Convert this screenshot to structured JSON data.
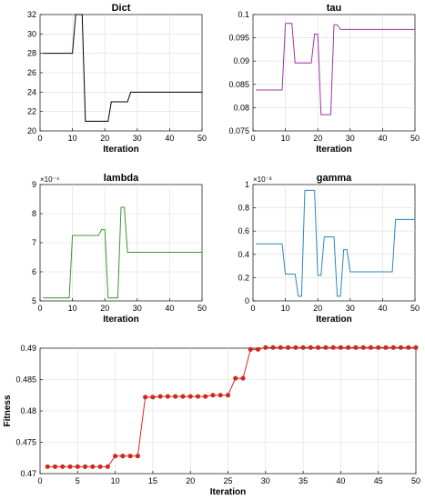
{
  "chart_data": [
    {
      "id": "dict",
      "type": "line",
      "title": "Dict",
      "xlabel": "Iteration",
      "ylabel": "",
      "xlim": [
        0,
        50
      ],
      "ylim": [
        20,
        32
      ],
      "xticks": [
        0,
        10,
        20,
        30,
        40,
        50
      ],
      "yticks": [
        20,
        22,
        24,
        26,
        28,
        30,
        32
      ],
      "ytick_labels": [
        "20",
        "22",
        "24",
        "26",
        "28",
        "30",
        "32"
      ],
      "exponent_label": "",
      "grid": true,
      "color": "#000000",
      "markers": false,
      "series": [
        {
          "x": [
            1,
            2,
            3,
            4,
            5,
            6,
            7,
            8,
            9,
            10,
            11,
            12,
            13,
            14,
            15,
            16,
            17,
            18,
            19,
            20,
            21,
            22,
            23,
            24,
            25,
            26,
            27,
            28,
            29,
            30,
            31,
            32,
            33,
            34,
            35,
            36,
            37,
            38,
            39,
            40,
            41,
            42,
            43,
            44,
            45,
            46,
            47,
            48,
            49,
            50
          ],
          "y": [
            28,
            28,
            28,
            28,
            28,
            28,
            28,
            28,
            28,
            28,
            32,
            32,
            32,
            21,
            21,
            21,
            21,
            21,
            21,
            21,
            21,
            23,
            23,
            23,
            23,
            23,
            23,
            24,
            24,
            24,
            24,
            24,
            24,
            24,
            24,
            24,
            24,
            24,
            24,
            24,
            24,
            24,
            24,
            24,
            24,
            24,
            24,
            24,
            24,
            24
          ]
        }
      ]
    },
    {
      "id": "tau",
      "type": "line",
      "title": "tau",
      "xlabel": "Iteration",
      "ylabel": "",
      "xlim": [
        0,
        50
      ],
      "ylim": [
        0.075,
        0.1
      ],
      "xticks": [
        0,
        10,
        20,
        30,
        40,
        50
      ],
      "yticks": [
        0.075,
        0.08,
        0.085,
        0.09,
        0.095,
        0.1
      ],
      "ytick_labels": [
        "0.075",
        "0.08",
        "0.085",
        "0.09",
        "0.095",
        "0.1"
      ],
      "exponent_label": "",
      "grid": true,
      "color": "#a035a8",
      "markers": false,
      "series": [
        {
          "x": [
            1,
            2,
            3,
            4,
            5,
            6,
            7,
            8,
            9,
            10,
            11,
            12,
            13,
            14,
            15,
            16,
            17,
            18,
            19,
            20,
            21,
            22,
            23,
            24,
            25,
            26,
            27,
            28,
            29,
            30,
            31,
            32,
            33,
            34,
            35,
            36,
            37,
            38,
            39,
            40,
            41,
            42,
            43,
            44,
            45,
            46,
            47,
            48,
            49,
            50
          ],
          "y": [
            0.0838,
            0.0838,
            0.0838,
            0.0838,
            0.0838,
            0.0838,
            0.0838,
            0.0838,
            0.0838,
            0.0981,
            0.0981,
            0.0981,
            0.0896,
            0.0896,
            0.0896,
            0.0896,
            0.0896,
            0.0896,
            0.0958,
            0.0958,
            0.0785,
            0.0785,
            0.0785,
            0.0785,
            0.0978,
            0.0978,
            0.0968,
            0.0968,
            0.0968,
            0.0968,
            0.0968,
            0.0968,
            0.0968,
            0.0968,
            0.0968,
            0.0968,
            0.0968,
            0.0968,
            0.0968,
            0.0968,
            0.0968,
            0.0968,
            0.0968,
            0.0968,
            0.0968,
            0.0968,
            0.0968,
            0.0968,
            0.0968,
            0.0968
          ]
        }
      ]
    },
    {
      "id": "lambda",
      "type": "line",
      "title": "lambda",
      "xlabel": "Iteration",
      "ylabel": "",
      "xlim": [
        0,
        50
      ],
      "ylim": [
        5,
        9
      ],
      "xticks": [
        0,
        10,
        20,
        30,
        40,
        50
      ],
      "yticks": [
        5,
        6,
        7,
        8,
        9
      ],
      "ytick_labels": [
        "5",
        "6",
        "7",
        "8",
        "9"
      ],
      "exponent_label": "×10⁻⁴",
      "grid": true,
      "color": "#3a9a2e",
      "markers": false,
      "series": [
        {
          "x": [
            1,
            2,
            3,
            4,
            5,
            6,
            7,
            8,
            9,
            10,
            11,
            12,
            13,
            14,
            15,
            16,
            17,
            18,
            19,
            20,
            21,
            22,
            23,
            24,
            25,
            26,
            27,
            28,
            29,
            30,
            31,
            32,
            33,
            34,
            35,
            36,
            37,
            38,
            39,
            40,
            41,
            42,
            43,
            44,
            45,
            46,
            47,
            48,
            49,
            50
          ],
          "y": [
            5.1,
            5.1,
            5.1,
            5.1,
            5.1,
            5.1,
            5.1,
            5.1,
            5.1,
            7.25,
            7.25,
            7.25,
            7.25,
            7.25,
            7.25,
            7.25,
            7.25,
            7.25,
            7.45,
            7.45,
            5.1,
            5.1,
            5.1,
            5.1,
            8.22,
            8.22,
            6.67,
            6.67,
            6.67,
            6.67,
            6.67,
            6.67,
            6.67,
            6.67,
            6.67,
            6.67,
            6.67,
            6.67,
            6.67,
            6.67,
            6.67,
            6.67,
            6.67,
            6.67,
            6.67,
            6.67,
            6.67,
            6.67,
            6.67,
            6.67
          ]
        }
      ]
    },
    {
      "id": "gamma",
      "type": "line",
      "title": "gamma",
      "xlabel": "Iteration",
      "ylabel": "",
      "xlim": [
        0,
        50
      ],
      "ylim": [
        0,
        1
      ],
      "xticks": [
        0,
        10,
        20,
        30,
        40,
        50
      ],
      "yticks": [
        0,
        0.2,
        0.4,
        0.6,
        0.8,
        1
      ],
      "ytick_labels": [
        "0",
        "0.2",
        "0.4",
        "0.6",
        "0.8",
        "1"
      ],
      "exponent_label": "×10⁻³",
      "grid": true,
      "color": "#2e86c1",
      "markers": false,
      "series": [
        {
          "x": [
            1,
            2,
            3,
            4,
            5,
            6,
            7,
            8,
            9,
            10,
            11,
            12,
            13,
            14,
            15,
            16,
            17,
            18,
            19,
            20,
            21,
            22,
            23,
            24,
            25,
            26,
            27,
            28,
            29,
            30,
            31,
            32,
            33,
            34,
            35,
            36,
            37,
            38,
            39,
            40,
            41,
            42,
            43,
            44,
            45,
            46,
            47,
            48,
            49,
            50
          ],
          "y": [
            0.49,
            0.49,
            0.49,
            0.49,
            0.49,
            0.49,
            0.49,
            0.49,
            0.49,
            0.23,
            0.23,
            0.23,
            0.23,
            0.04,
            0.04,
            0.95,
            0.95,
            0.95,
            0.95,
            0.22,
            0.22,
            0.55,
            0.55,
            0.55,
            0.55,
            0.04,
            0.04,
            0.44,
            0.44,
            0.25,
            0.25,
            0.25,
            0.25,
            0.25,
            0.25,
            0.25,
            0.25,
            0.25,
            0.25,
            0.25,
            0.25,
            0.25,
            0.25,
            0.7,
            0.7,
            0.7,
            0.7,
            0.7,
            0.7,
            0.7
          ]
        }
      ]
    },
    {
      "id": "fitness",
      "type": "line",
      "title": "",
      "xlabel": "Iteration",
      "ylabel": "Fitness",
      "xlim": [
        0,
        50
      ],
      "ylim": [
        0.47,
        0.49
      ],
      "xticks": [
        0,
        5,
        10,
        15,
        20,
        25,
        30,
        35,
        40,
        45,
        50
      ],
      "yticks": [
        0.47,
        0.475,
        0.48,
        0.485,
        0.49
      ],
      "ytick_labels": [
        "0.47",
        "0.475",
        "0.48",
        "0.485",
        "0.49"
      ],
      "exponent_label": "",
      "grid": true,
      "color": "#e0261d",
      "markers": true,
      "series": [
        {
          "x": [
            1,
            2,
            3,
            4,
            5,
            6,
            7,
            8,
            9,
            10,
            11,
            12,
            13,
            14,
            15,
            16,
            17,
            18,
            19,
            20,
            21,
            22,
            23,
            24,
            25,
            26,
            27,
            28,
            29,
            30,
            31,
            32,
            33,
            34,
            35,
            36,
            37,
            38,
            39,
            40,
            41,
            42,
            43,
            44,
            45,
            46,
            47,
            48,
            49,
            50
          ],
          "y": [
            0.4711,
            0.4711,
            0.4711,
            0.4711,
            0.4711,
            0.4711,
            0.4711,
            0.4711,
            0.4711,
            0.4728,
            0.4728,
            0.4728,
            0.4728,
            0.4822,
            0.4822,
            0.4823,
            0.4823,
            0.4823,
            0.4823,
            0.4823,
            0.4823,
            0.4823,
            0.4825,
            0.4825,
            0.4825,
            0.4852,
            0.4852,
            0.4898,
            0.4898,
            0.4901,
            0.4901,
            0.4901,
            0.4901,
            0.4901,
            0.4901,
            0.4901,
            0.4901,
            0.4901,
            0.4901,
            0.4901,
            0.4901,
            0.4901,
            0.4901,
            0.4901,
            0.4901,
            0.4901,
            0.4901,
            0.4901,
            0.4901,
            0.4901
          ]
        }
      ]
    }
  ]
}
